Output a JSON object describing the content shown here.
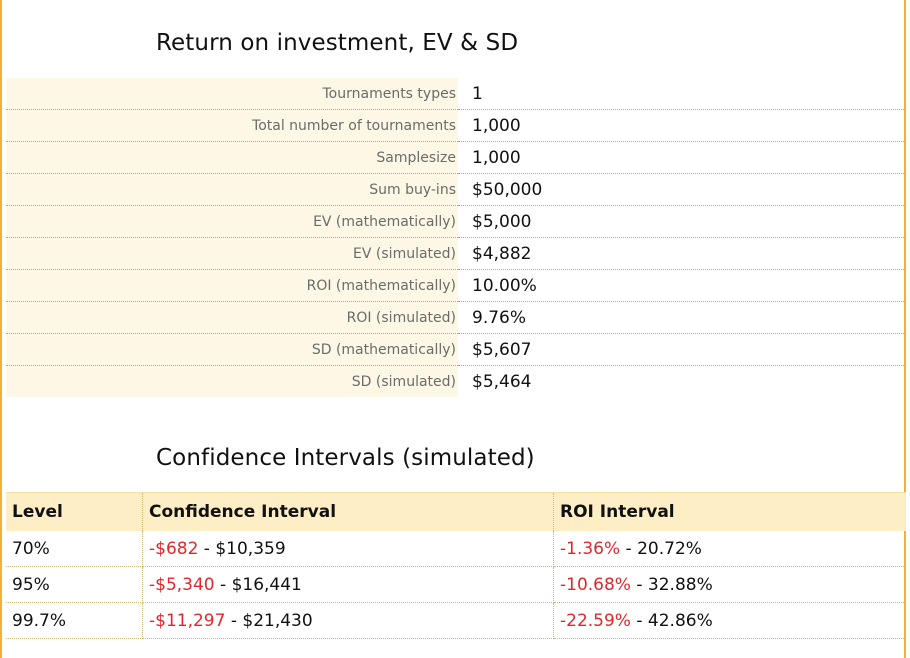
{
  "roi_section": {
    "title": "Return on investment, EV & SD",
    "rows": [
      {
        "label": "Tournaments types",
        "value": "1"
      },
      {
        "label": "Total number of tournaments",
        "value": "1,000"
      },
      {
        "label": "Samplesize",
        "value": "1,000"
      },
      {
        "label": "Sum buy-ins",
        "value": "$50,000"
      },
      {
        "label": "EV (mathematically)",
        "value": "$5,000"
      },
      {
        "label": "EV (simulated)",
        "value": "$4,882"
      },
      {
        "label": "ROI (mathematically)",
        "value": "10.00%"
      },
      {
        "label": "ROI (simulated)",
        "value": "9.76%"
      },
      {
        "label": "SD (mathematically)",
        "value": "$5,607"
      },
      {
        "label": "SD (simulated)",
        "value": "$5,464"
      }
    ]
  },
  "ci_section": {
    "title": "Confidence Intervals (simulated)",
    "headers": {
      "level": "Level",
      "confidence_interval": "Confidence Interval",
      "roi_interval": "ROI Interval"
    },
    "rows": [
      {
        "level": "70%",
        "ci_low": "-$682",
        "ci_high": "$10,359",
        "roi_low": "-1.36%",
        "roi_high": "20.72%"
      },
      {
        "level": "95%",
        "ci_low": "-$5,340",
        "ci_high": "$16,441",
        "roi_low": "-10.68%",
        "roi_high": "32.88%"
      },
      {
        "level": "99.7%",
        "ci_low": "-$11,297",
        "ci_high": "$21,430",
        "roi_low": "-22.59%",
        "roi_high": "42.86%"
      }
    ],
    "separator": " - "
  },
  "colors": {
    "frame_border": "#f0b13a",
    "label_bg": "#fdf8e6",
    "header_bg": "#fdeec5",
    "negative": "#e0282c"
  }
}
